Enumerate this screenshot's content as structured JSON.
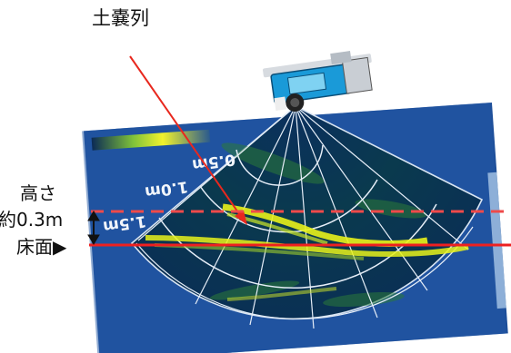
{
  "annotations": {
    "title": "土嚢列",
    "height_label": "高さ",
    "height_value": "約0.3m",
    "floor_label": "床面▶"
  },
  "sonar": {
    "range_labels": [
      "0.5m",
      "1.0m",
      "1.5m"
    ]
  },
  "colors": {
    "sonar_background": "#1e4f9a",
    "sonar_dark": "#062046",
    "echo_yellow": "#e8f21a",
    "echo_green": "#4ea33a",
    "arrow_red": "#e8281e",
    "dashed_line": "#ef4a4a",
    "floor_line": "#ee2020",
    "robot_body": "#1a9ad8"
  },
  "icons": [
    "sonar-robot-icon",
    "double-arrow-icon",
    "right-triangle-icon"
  ]
}
